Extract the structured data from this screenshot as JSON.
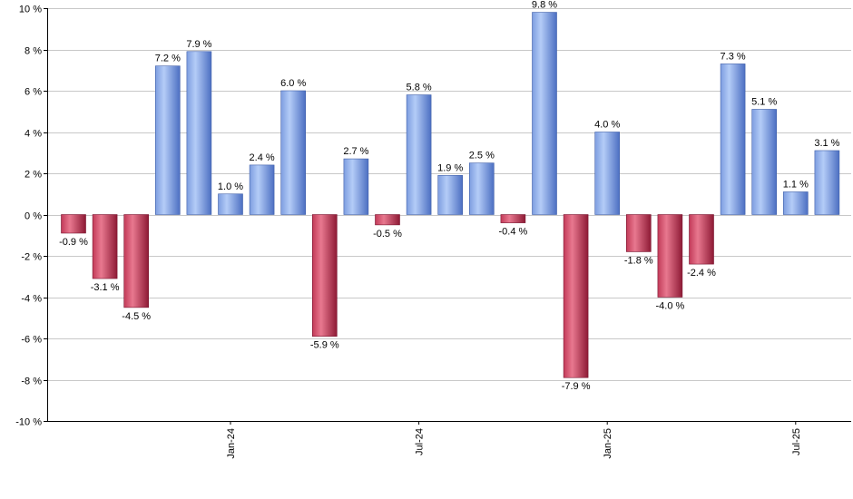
{
  "chart_data": {
    "type": "bar",
    "title": "",
    "xlabel": "",
    "ylabel": "",
    "ylim": [
      -10,
      10
    ],
    "yticks": [
      -10,
      -8,
      -6,
      -4,
      -2,
      0,
      2,
      4,
      6,
      8,
      10
    ],
    "ytick_suffix": " %",
    "values": [
      -0.9,
      -3.1,
      -4.5,
      7.2,
      7.9,
      1.0,
      2.4,
      6.0,
      -5.9,
      2.7,
      -0.5,
      5.8,
      1.9,
      2.5,
      -0.4,
      9.8,
      -7.9,
      4.0,
      -1.8,
      -4.0,
      -2.4,
      7.3,
      5.1,
      1.1,
      3.1
    ],
    "value_labels": [
      "-0.9 %",
      "-3.1 %",
      "-4.5 %",
      "7.2 %",
      "7.9 %",
      "1.0 %",
      "2.4 %",
      "6.0 %",
      "-5.9 %",
      "2.7 %",
      "-0.5 %",
      "5.8 %",
      "1.9 %",
      "2.5 %",
      "-0.4 %",
      "9.8 %",
      "-7.9 %",
      "4.0 %",
      "-1.8 %",
      "-4.0 %",
      "-2.4 %",
      "7.3 %",
      "5.1 %",
      "1.1 %",
      "3.1 %"
    ],
    "x_tick_labels": [
      {
        "index": 5,
        "label": "Jan-24"
      },
      {
        "index": 11,
        "label": "Jul-24"
      },
      {
        "index": 17,
        "label": "Jan-25"
      },
      {
        "index": 23,
        "label": "Jul-25"
      }
    ],
    "grid": true,
    "legend": "none",
    "colors": {
      "positive_light": "#a9c4f5",
      "positive_dark": "#5a7fcf",
      "negative_light": "#e0607a",
      "negative_dark": "#9c1f3c"
    }
  }
}
